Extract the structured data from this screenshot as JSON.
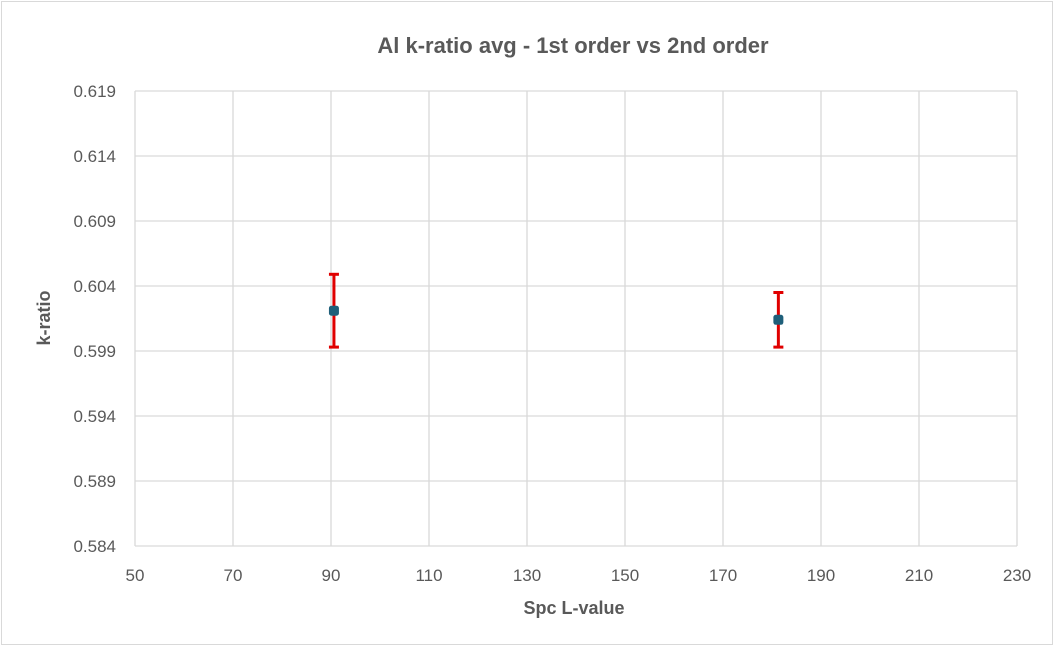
{
  "chart_data": {
    "type": "scatter",
    "title": "Al k-ratio avg - 1st order vs 2nd order",
    "xlabel": "Spc L-value",
    "ylabel": "k-ratio",
    "xlim": [
      50,
      230
    ],
    "ylim": [
      0.584,
      0.619
    ],
    "x_ticks": [
      50,
      70,
      90,
      110,
      130,
      150,
      170,
      190,
      210,
      230
    ],
    "y_ticks": [
      0.584,
      0.589,
      0.594,
      0.599,
      0.604,
      0.609,
      0.614,
      0.619
    ],
    "grid": true,
    "legend": "none",
    "points": [
      {
        "x": 90.6,
        "y": 0.6021,
        "y_err_low": 0.5993,
        "y_err_high": 0.6049
      },
      {
        "x": 181.3,
        "y": 0.6014,
        "y_err_low": 0.5993,
        "y_err_high": 0.6035
      }
    ],
    "colors": {
      "marker": "#1f5f7a",
      "error_bar": "#e00000",
      "grid": "#d9d9d9",
      "text": "#595959"
    }
  }
}
